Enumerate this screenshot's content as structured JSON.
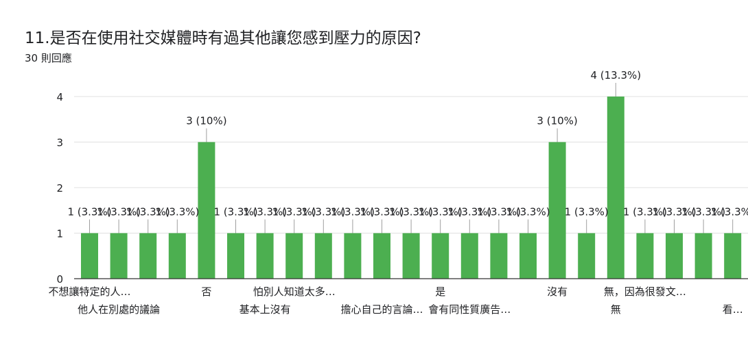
{
  "question": {
    "title": "11.是否在使用社交媒體時有過其他讓您感到壓力的原因?",
    "responses": "30 則回應"
  },
  "colors": {
    "bar": "#4caf50",
    "grid": "#e0e0e0",
    "axis": "#333333",
    "text": "#202124"
  },
  "chart_data": {
    "type": "bar",
    "title": "11.是否在使用社交媒體時有過其他讓您感到壓力的原因?",
    "subtitle": "30 則回應",
    "xlabel": "",
    "ylabel": "",
    "ylim": [
      0,
      4
    ],
    "yticks": [
      0,
      1,
      2,
      3,
      4
    ],
    "grid": true,
    "categories": [
      "不想讓特定的人…",
      "他人在別處的議論",
      "",
      "",
      "否",
      "",
      "基本上沒有",
      "怕別人知道太多…",
      "",
      "",
      "擔心自己的言論…",
      "",
      "是",
      "會有同性質廣告…",
      "",
      "",
      "沒有",
      "",
      "無",
      "無，因為很發文…",
      "",
      "",
      "看…"
    ],
    "category_label_rows": [
      1,
      2,
      1,
      2,
      1,
      2,
      2,
      1,
      2,
      1,
      2,
      1,
      1,
      2,
      1,
      2,
      1,
      2,
      2,
      1,
      2,
      1,
      2
    ],
    "values": [
      1,
      1,
      1,
      1,
      3,
      1,
      1,
      1,
      1,
      1,
      1,
      1,
      1,
      1,
      1,
      1,
      3,
      1,
      4,
      1,
      1,
      1,
      1
    ],
    "data_labels": [
      "1 (3.3%)",
      "1 (3.3%)",
      "1 (3.3%)",
      "1 (3.3%)",
      "3 (10%)",
      "1 (3.3%)",
      "1 (3.3%)",
      "1 (3.3%)",
      "1 (3.3%)",
      "1 (3.3%)",
      "1 (3.3%)",
      "1 (3.3%)",
      "1 (3.3%)",
      "1 (3.3%)",
      "1 (3.3%)",
      "1 (3.3%)",
      "3 (10%)",
      "1 (3.3%)",
      "4 (13.3%)",
      "1 (3.3%)",
      "1 (3.3%)",
      "1 (3.3%)",
      "1 (3.3%)"
    ]
  }
}
